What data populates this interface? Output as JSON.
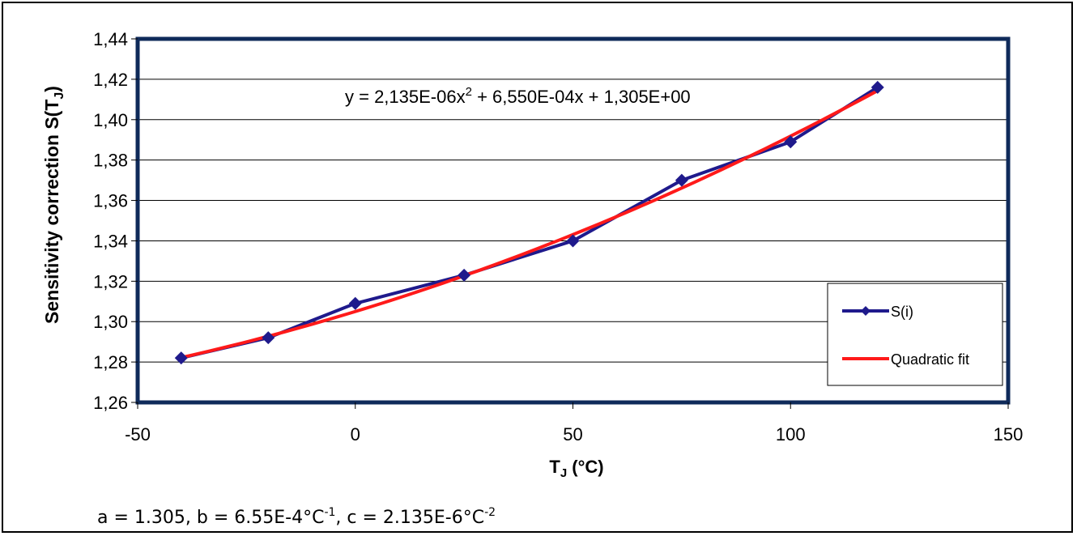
{
  "chart_data": {
    "type": "line",
    "xlabel": "T",
    "xlabel_sub": "J",
    "xlabel_unit": " (°C)",
    "ylabel": "Sensitivity correction S(T",
    "ylabel_sub": "J",
    "ylabel_end": ")",
    "xlim": [
      -50,
      150
    ],
    "ylim": [
      1.26,
      1.44
    ],
    "xticks": [
      "-50",
      "0",
      "50",
      "100",
      "150"
    ],
    "yticks": [
      "1,26",
      "1,28",
      "1,30",
      "1,32",
      "1,34",
      "1,36",
      "1,38",
      "1,40",
      "1,42",
      "1,44"
    ],
    "grid": "horizontal",
    "legend_position": "right",
    "series": [
      {
        "name": "S(i)",
        "color": "#1f1a8c",
        "marker": "diamond",
        "x": [
          -40,
          -20,
          0,
          25,
          50,
          75,
          100,
          120
        ],
        "y": [
          1.282,
          1.292,
          1.309,
          1.323,
          1.34,
          1.37,
          1.389,
          1.416
        ]
      },
      {
        "name": "Quadratic fit",
        "color": "#ff1a1a",
        "marker": "none",
        "fit": {
          "a": 1.305,
          "b": 0.000655,
          "c": 2.135e-06
        }
      }
    ],
    "equation": {
      "prefix": "y = 2,135E-06x",
      "sup": "2",
      "suffix": " + 6,550E-04x + 1,305E+00"
    }
  },
  "note": {
    "part1": "a = 1.305, b = 6.55E-4°C",
    "sup1": "-1",
    "part2": ", c = 2.135E-6°C",
    "sup2": "-2"
  }
}
